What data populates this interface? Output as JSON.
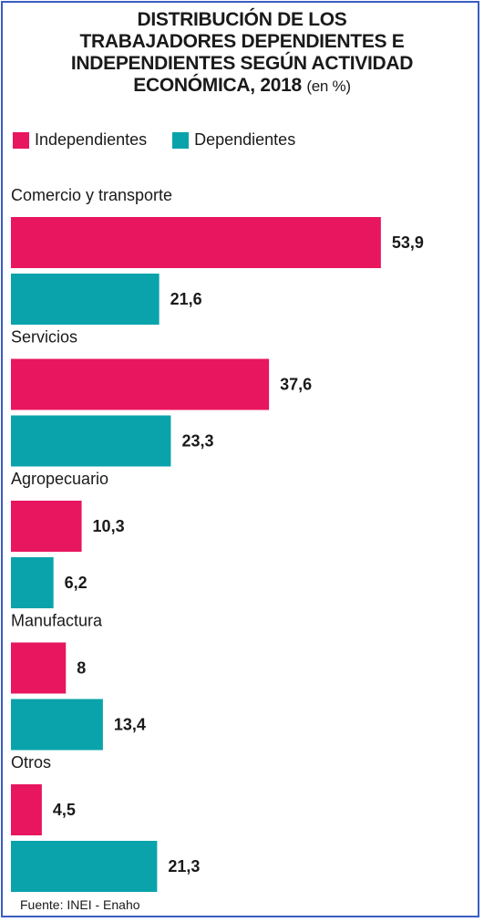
{
  "title_main": "DISTRIBUCIÓN DE LOS TRABAJADORES DEPENDIENTES E INDEPENDIENTES SEGÚN ACTIVIDAD ECONÓMICA, 2018",
  "title_lines": [
    "DISTRIBUCIÓN DE LOS",
    "TRABAJADORES DEPENDIENTES E",
    "INDEPENDIENTES SEGÚN ACTIVIDAD",
    "ECONÓMICA, 2018"
  ],
  "title_unit": "(en %)",
  "source": "Fuente: INEI - Enaho",
  "colors": {
    "independientes": "#e8155f",
    "dependientes": "#0aa3ac"
  },
  "chart_data": {
    "type": "bar",
    "orientation": "horizontal",
    "title": "DISTRIBUCIÓN DE LOS TRABAJADORES DEPENDIENTES E INDEPENDIENTES SEGÚN ACTIVIDAD ECONÓMICA, 2018 (en %)",
    "categories": [
      "Comercio y transporte",
      "Servicios",
      "Agropecuario",
      "Manufactura",
      "Otros"
    ],
    "series": [
      {
        "name": "Independientes",
        "values": [
          53.9,
          37.6,
          10.3,
          8,
          4.5
        ],
        "labels": [
          "53,9",
          "37,6",
          "10,3",
          "8",
          "4,5"
        ]
      },
      {
        "name": "Dependientes",
        "values": [
          21.6,
          23.3,
          6.2,
          13.4,
          21.3
        ],
        "labels": [
          "21,6",
          "23,3",
          "6,2",
          "13,4",
          "21,3"
        ]
      }
    ],
    "legend_position": "top-left",
    "grid": false
  }
}
